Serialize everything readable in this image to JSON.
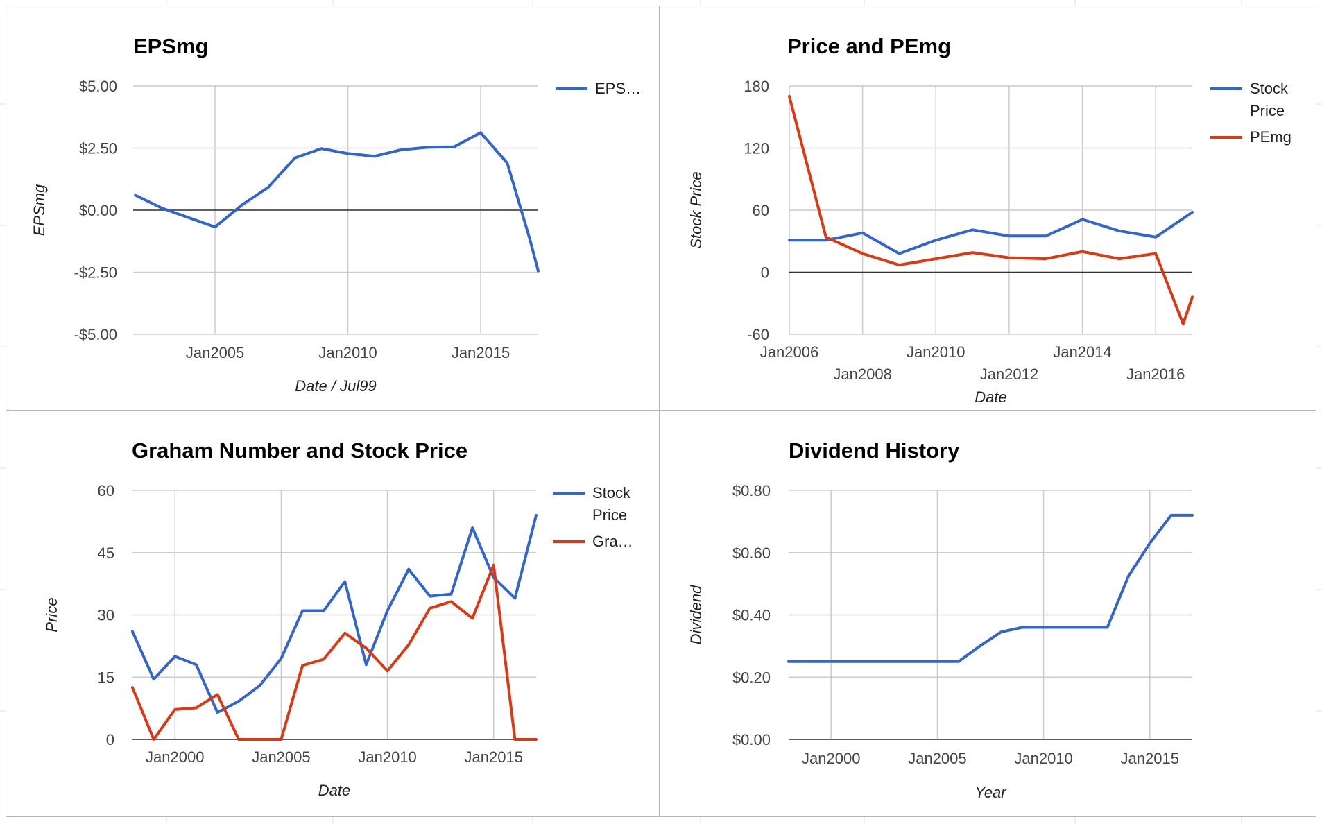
{
  "chart_data": [
    {
      "type": "line",
      "title": "EPSmg",
      "xlabel": "Date / Jul99",
      "ylabel": "EPSmg",
      "x_axis_type": "date",
      "xlim": [
        "2001-12",
        "2017-03"
      ],
      "ylim": [
        -5,
        5
      ],
      "y_ticks": [
        "$5.00",
        "$2.50",
        "$0.00",
        "-$2.50",
        "-$5.00"
      ],
      "y_tick_values": [
        5,
        2.5,
        0,
        -2.5,
        -5
      ],
      "x_ticks": [
        "Jan2005",
        "Jan2010",
        "Jan2015"
      ],
      "x_tick_values": [
        "2005-01",
        "2010-01",
        "2015-01"
      ],
      "grid": true,
      "legend": "right",
      "series": [
        {
          "name": "EPS…",
          "color": "#3366cc",
          "x": [
            "2002-01",
            "2003-01",
            "2004-01",
            "2005-01",
            "2006-01",
            "2007-01",
            "2008-01",
            "2009-01",
            "2010-01",
            "2011-01",
            "2012-01",
            "2013-01",
            "2014-01",
            "2015-01",
            "2016-01",
            "2016-11",
            "2017-03"
          ],
          "y": [
            0.6,
            0.08,
            -0.3,
            -0.68,
            0.2,
            0.92,
            2.1,
            2.48,
            2.28,
            2.17,
            2.43,
            2.53,
            2.55,
            3.12,
            1.9,
            -1.1,
            -2.45
          ]
        }
      ]
    },
    {
      "type": "line",
      "title": "Price and PEmg",
      "xlabel": "Date",
      "ylabel": "Stock Price",
      "x_axis_type": "date",
      "xlim": [
        "2006-01",
        "2017-01"
      ],
      "ylim": [
        -60,
        180
      ],
      "y_ticks": [
        "180",
        "120",
        "60",
        "0",
        "-60"
      ],
      "y_tick_values": [
        180,
        120,
        60,
        0,
        -60
      ],
      "x_ticks_top": [
        "Jan2006",
        "Jan2010",
        "Jan2014"
      ],
      "x_ticks_top_values": [
        "2006-01",
        "2010-01",
        "2014-01"
      ],
      "x_ticks_bottom": [
        "Jan2008",
        "Jan2012",
        "Jan2016"
      ],
      "x_ticks_bottom_values": [
        "2008-01",
        "2012-01",
        "2016-01"
      ],
      "grid": true,
      "legend": "right",
      "series": [
        {
          "name": "Stock Price",
          "color": "#3366cc",
          "x": [
            "2006-01",
            "2007-01",
            "2008-01",
            "2009-01",
            "2010-01",
            "2011-01",
            "2012-01",
            "2013-01",
            "2014-01",
            "2015-01",
            "2016-01",
            "2017-01"
          ],
          "y": [
            31,
            31,
            38,
            18,
            31,
            41,
            35,
            35,
            51,
            40,
            34,
            58
          ]
        },
        {
          "name": "PEmg",
          "color": "#dc3912",
          "x": [
            "2006-01",
            "2007-01",
            "2008-01",
            "2009-01",
            "2010-01",
            "2011-01",
            "2012-01",
            "2013-01",
            "2014-01",
            "2015-01",
            "2016-01",
            "2016-10",
            "2017-01"
          ],
          "y": [
            170,
            34,
            18,
            7,
            13,
            19,
            14,
            13,
            20,
            13,
            18,
            -50,
            -24
          ]
        }
      ]
    },
    {
      "type": "line",
      "title": "Graham Number and Stock Price",
      "xlabel": "Date",
      "ylabel": "Price",
      "x_axis_type": "date",
      "xlim": [
        "1998-01",
        "2017-01"
      ],
      "ylim": [
        0,
        60
      ],
      "y_ticks": [
        "60",
        "45",
        "30",
        "15",
        "0"
      ],
      "y_tick_values": [
        60,
        45,
        30,
        15,
        0
      ],
      "x_ticks": [
        "Jan2000",
        "Jan2005",
        "Jan2010",
        "Jan2015"
      ],
      "x_tick_values": [
        "2000-01",
        "2005-01",
        "2010-01",
        "2015-01"
      ],
      "grid": true,
      "legend": "right",
      "series": [
        {
          "name": "Stock Price",
          "color": "#3366cc",
          "x": [
            "1998-01",
            "1999-01",
            "2000-01",
            "2001-01",
            "2002-01",
            "2003-01",
            "2004-01",
            "2005-01",
            "2006-01",
            "2007-01",
            "2008-01",
            "2009-01",
            "2010-01",
            "2011-01",
            "2012-01",
            "2013-01",
            "2014-01",
            "2015-01",
            "2016-01",
            "2017-01"
          ],
          "y": [
            26,
            14.5,
            20,
            18,
            6.5,
            9.2,
            13,
            19.5,
            31,
            31,
            38,
            18,
            31,
            41,
            34.5,
            35,
            51,
            39,
            34,
            54
          ]
        },
        {
          "name": "Gra…",
          "color": "#dc3912",
          "x": [
            "1998-01",
            "1999-01",
            "2000-01",
            "2001-01",
            "2002-01",
            "2003-01",
            "2004-01",
            "2005-01",
            "2006-01",
            "2007-01",
            "2008-01",
            "2009-01",
            "2010-01",
            "2011-01",
            "2012-01",
            "2013-01",
            "2014-01",
            "2015-01",
            "2016-01",
            "2017-01"
          ],
          "y": [
            12.5,
            0,
            7.2,
            7.6,
            10.8,
            0,
            0,
            0,
            17.8,
            19.3,
            25.6,
            22,
            16.5,
            22.8,
            31.6,
            33.2,
            29.2,
            42,
            0,
            0
          ]
        }
      ]
    },
    {
      "type": "line",
      "title": "Dividend History",
      "xlabel": "Year",
      "ylabel": "Dividend",
      "x_axis_type": "date",
      "xlim": [
        "1998-01",
        "2017-01"
      ],
      "ylim": [
        0,
        0.8
      ],
      "y_ticks": [
        "$0.80",
        "$0.60",
        "$0.40",
        "$0.20",
        "$0.00"
      ],
      "y_tick_values": [
        0.8,
        0.6,
        0.4,
        0.2,
        0
      ],
      "x_ticks": [
        "Jan2000",
        "Jan2005",
        "Jan2010",
        "Jan2015"
      ],
      "x_tick_values": [
        "2000-01",
        "2005-01",
        "2010-01",
        "2015-01"
      ],
      "grid": true,
      "legend": "none",
      "series": [
        {
          "color": "#3366cc",
          "x": [
            "1998-01",
            "2000-01",
            "2002-01",
            "2004-01",
            "2006-01",
            "2007-01",
            "2008-01",
            "2009-01",
            "2010-01",
            "2011-01",
            "2012-01",
            "2013-01",
            "2014-01",
            "2015-01",
            "2016-01",
            "2017-01"
          ],
          "y": [
            0.25,
            0.25,
            0.25,
            0.25,
            0.25,
            0.3,
            0.345,
            0.36,
            0.36,
            0.36,
            0.36,
            0.36,
            0.525,
            0.63,
            0.72,
            0.72
          ]
        }
      ]
    }
  ]
}
